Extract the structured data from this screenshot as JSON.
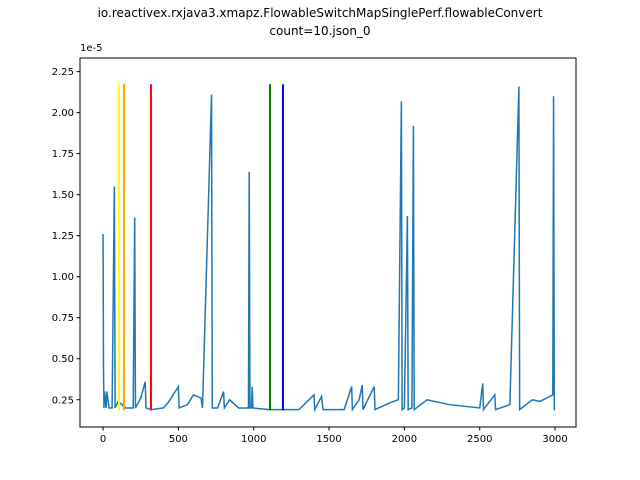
{
  "chart_data": {
    "type": "line",
    "title_lines": [
      "io.reactivex.rxjava3.xmapz.FlowableSwitchMapSinglePerf.flowableConvert",
      "count=10.json_0"
    ],
    "offset_label": "1e-5",
    "x": [
      0,
      3,
      6,
      10,
      20,
      25,
      40,
      60,
      75,
      80,
      100,
      150,
      200,
      210,
      215,
      250,
      280,
      285,
      320,
      400,
      430,
      500,
      505,
      560,
      600,
      650,
      660,
      720,
      725,
      760,
      800,
      805,
      840,
      900,
      965,
      970,
      975,
      985,
      990,
      995,
      1100,
      1200,
      1300,
      1400,
      1405,
      1450,
      1460,
      1500,
      1600,
      1650,
      1655,
      1700,
      1720,
      1725,
      1800,
      1805,
      1900,
      1960,
      1980,
      1985,
      2000,
      2020,
      2025,
      2050,
      2060,
      2065,
      2150,
      2300,
      2500,
      2520,
      2525,
      2600,
      2605,
      2700,
      2760,
      2765,
      2850,
      2900,
      2985,
      2990,
      2995,
      3000
    ],
    "series": [
      {
        "color": "#1f77b4",
        "values": [
          1.26,
          0.45,
          0.2,
          0.3,
          0.2,
          0.3,
          0.2,
          0.2,
          1.55,
          0.2,
          0.24,
          0.2,
          0.2,
          1.36,
          0.2,
          0.26,
          0.36,
          0.2,
          0.19,
          0.2,
          0.23,
          0.33,
          0.2,
          0.22,
          0.28,
          0.26,
          0.2,
          2.11,
          0.2,
          0.2,
          0.3,
          0.2,
          0.25,
          0.2,
          0.2,
          1.64,
          0.2,
          0.2,
          0.33,
          0.2,
          0.19,
          0.19,
          0.19,
          0.28,
          0.19,
          0.27,
          0.19,
          0.19,
          0.19,
          0.33,
          0.19,
          0.25,
          0.34,
          0.19,
          0.33,
          0.19,
          0.23,
          0.25,
          2.07,
          0.19,
          0.2,
          1.37,
          0.19,
          0.2,
          1.92,
          0.19,
          0.25,
          0.22,
          0.2,
          0.35,
          0.19,
          0.28,
          0.19,
          0.22,
          2.16,
          0.19,
          0.25,
          0.24,
          0.28,
          2.1,
          0.19,
          0.19
        ]
      }
    ],
    "vlines": {
      "x": [
        106,
        139,
        318,
        1108,
        1194
      ],
      "colors": [
        "#ffff00",
        "#ffa500",
        "#ff0000",
        "#008000",
        "#0000ff"
      ],
      "ymin": 0.185,
      "ymax": 2.173
    },
    "xlim": [
      -153,
      3139
    ],
    "ylim": [
      0.084,
      2.333
    ],
    "xticks": [
      0,
      500,
      1000,
      1500,
      2000,
      2500,
      3000
    ],
    "yticks": [
      0.25,
      {
        "value": 0.5,
        "label": "0.50"
      },
      0.75,
      {
        "value": 1,
        "label": "1.00"
      },
      1.25,
      {
        "value": 1.5,
        "label": "1.50"
      },
      1.75,
      {
        "value": 2,
        "label": "2.00"
      },
      2.25
    ]
  }
}
